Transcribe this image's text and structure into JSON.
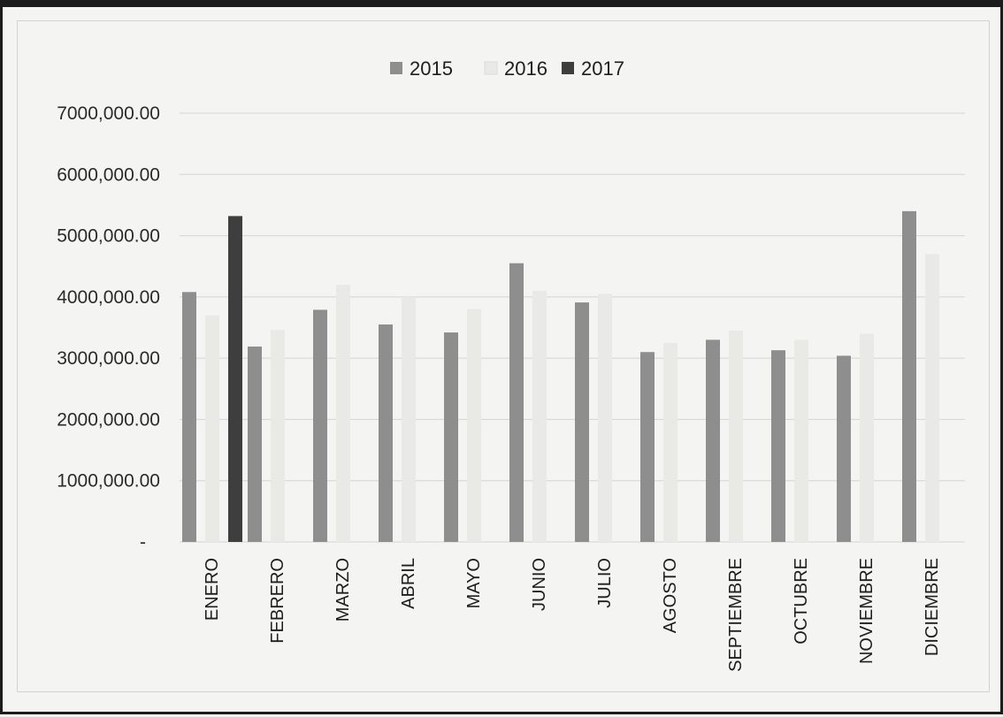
{
  "chart_data": {
    "type": "bar",
    "title": "",
    "xlabel": "",
    "ylabel": "",
    "categories": [
      "ENERO",
      "FEBRERO",
      "MARZO",
      "ABRIL",
      "MAYO",
      "JUNIO",
      "JULIO",
      "AGOSTO",
      "SEPTIEMBRE",
      "OCTUBRE",
      "NOVIEMBRE",
      "DICIEMBRE"
    ],
    "series": [
      {
        "name": "2015",
        "color": "#8e8e8e",
        "values": [
          4080000,
          3190000,
          3790000,
          3550000,
          3420000,
          4550000,
          3910000,
          3100000,
          3300000,
          3130000,
          3040000,
          5400000
        ]
      },
      {
        "name": "2016",
        "color": "#e9e9e6",
        "values": [
          3700000,
          3460000,
          4200000,
          4000000,
          3800000,
          4100000,
          4050000,
          3250000,
          3450000,
          3300000,
          3400000,
          4700000
        ]
      },
      {
        "name": "2017",
        "color": "#3e3e3e",
        "values": [
          5320000,
          null,
          null,
          null,
          null,
          null,
          null,
          null,
          null,
          null,
          null,
          null
        ]
      }
    ],
    "ylim": [
      0,
      7000000
    ],
    "yticks": [
      0,
      1000000,
      2000000,
      3000000,
      4000000,
      5000000,
      6000000,
      7000000
    ],
    "ytick_labels": [
      "-",
      "1000,000.00",
      "2000,000.00",
      "3000,000.00",
      "4000,000.00",
      "5000,000.00",
      "6000,000.00",
      "7000,000.00"
    ],
    "grid": true,
    "legend_position": "top-center"
  }
}
